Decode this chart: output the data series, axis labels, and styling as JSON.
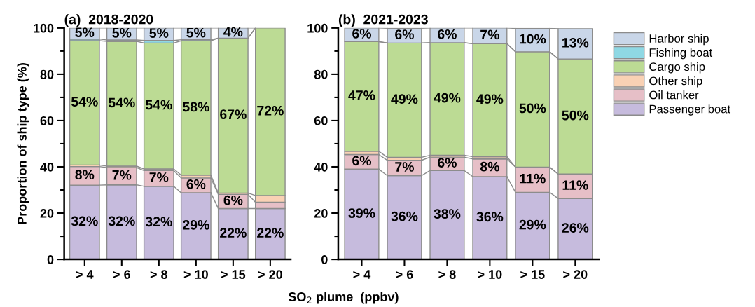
{
  "chart_data": [
    {
      "type": "bar",
      "stacked": true,
      "title": "(a)  2018-2020",
      "xlabel": "SO$_{2}$ plume  (ppbv)",
      "ylabel": "Proportion of ship type (%)",
      "categories": [
        "> 4",
        "> 6",
        "> 8",
        "> 10",
        "> 15",
        "> 20"
      ],
      "ylim": [
        0,
        100
      ],
      "yticks": [
        0,
        20,
        40,
        60,
        80,
        100
      ],
      "grid": false,
      "legend": false,
      "series": [
        {
          "color": "#c6bbdd",
          "values": [
            32.1,
            32.2,
            31.6,
            28.8,
            22.0,
            22.0
          ],
          "value_labels": [
            "32%",
            "32%",
            "32%",
            "29%",
            "22%",
            "22%"
          ]
        },
        {
          "color": "#e6bfc7",
          "values": [
            8.0,
            7.5,
            6.8,
            6.4,
            6.1,
            2.7
          ],
          "value_labels": [
            "8%",
            "7%",
            "7%",
            "6%",
            "6%",
            null
          ]
        },
        {
          "color": "#f9d1b4",
          "values": [
            0.7,
            0.6,
            0.7,
            1.2,
            0.6,
            2.9
          ],
          "value_labels": [
            null,
            null,
            null,
            null,
            null,
            null
          ]
        },
        {
          "color": "#bcdb94",
          "values": [
            53.7,
            53.9,
            54.4,
            58.0,
            66.9,
            72.4
          ],
          "value_labels": [
            "54%",
            "54%",
            "54%",
            "58%",
            "67%",
            "72%"
          ]
        },
        {
          "color": "#8fd8e4",
          "values": [
            0.7,
            0.6,
            1.1,
            0.5,
            0,
            0
          ],
          "value_labels": [
            null,
            null,
            null,
            null,
            null,
            null
          ]
        },
        {
          "color": "#c9d6e8",
          "values": [
            4.8,
            5.2,
            5.4,
            5.1,
            4.4,
            0
          ],
          "value_labels": [
            "5%",
            "5%",
            "5%",
            "5%",
            "4%",
            null
          ]
        }
      ]
    },
    {
      "type": "bar",
      "stacked": true,
      "title": "(b)  2021-2023",
      "categories": [
        "> 4",
        "> 6",
        "> 8",
        "> 10",
        "> 15",
        "> 20"
      ],
      "ylim": [
        0,
        100
      ],
      "yticks": [
        0,
        20,
        40,
        60,
        80,
        100
      ],
      "grid": false,
      "legend": "right",
      "series": [
        {
          "name": "Passenger boat",
          "color": "#c6bbdd",
          "values": [
            39.0,
            36.2,
            38.4,
            35.8,
            29.0,
            26.3
          ],
          "value_labels": [
            "39%",
            "36%",
            "38%",
            "36%",
            "29%",
            "26%"
          ]
        },
        {
          "name": "Oil tanker",
          "color": "#e6bfc7",
          "values": [
            6.3,
            6.6,
            5.8,
            7.6,
            10.9,
            10.6
          ],
          "value_labels": [
            "6%",
            "7%",
            "6%",
            "8%",
            "11%",
            "11%"
          ]
        },
        {
          "name": "Other ship",
          "color": "#f9d1b4",
          "values": [
            1.4,
            1.3,
            0.8,
            1.0,
            null,
            null
          ],
          "value_labels": [
            null,
            null,
            null,
            null,
            null,
            null
          ]
        },
        {
          "name": "Cargo ship",
          "color": "#bcdb94",
          "values": [
            47.4,
            49.4,
            48.6,
            48.8,
            49.8,
            49.7
          ],
          "value_labels": [
            "47%",
            "49%",
            "49%",
            "49%",
            "50%",
            "50%"
          ]
        },
        {
          "name": "Fishing boat",
          "color": "#8fd8e4",
          "values": [
            0,
            0,
            0,
            0,
            0,
            0
          ],
          "value_labels": [
            null,
            null,
            null,
            null,
            null,
            null
          ]
        },
        {
          "name": "Harbor ship",
          "color": "#c9d6e8",
          "values": [
            5.9,
            6.4,
            6.4,
            6.8,
            10.1,
            13.1
          ],
          "value_labels": [
            "6%",
            "6%",
            "6%",
            "7%",
            "10%",
            "13%"
          ]
        }
      ]
    }
  ]
}
